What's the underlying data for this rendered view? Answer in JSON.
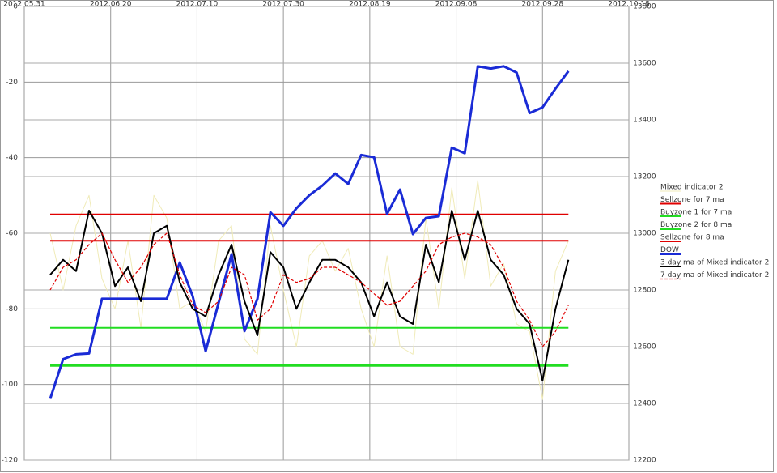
{
  "chart_data": {
    "type": "line",
    "x": [
      "2012-06-06",
      "2012-06-09",
      "2012-06-12",
      "2012-06-15",
      "2012-06-18",
      "2012-06-21",
      "2012-06-24",
      "2012-06-27",
      "2012-06-30",
      "2012-07-03",
      "2012-07-06",
      "2012-07-09",
      "2012-07-12",
      "2012-07-15",
      "2012-07-18",
      "2012-07-21",
      "2012-07-24",
      "2012-07-27",
      "2012-07-30",
      "2012-08-02",
      "2012-08-05",
      "2012-08-08",
      "2012-08-11",
      "2012-08-14",
      "2012-08-17",
      "2012-08-20",
      "2012-08-23",
      "2012-08-26",
      "2012-08-29",
      "2012-09-01",
      "2012-09-04",
      "2012-09-07",
      "2012-09-10",
      "2012-09-13",
      "2012-09-16",
      "2012-09-19",
      "2012-09-22",
      "2012-09-25",
      "2012-09-28",
      "2012-10-01",
      "2012-10-04"
    ],
    "xlim": [
      "2012-05-31",
      "2012-10-18"
    ],
    "xticks": [
      {
        "value": "2012-05-31",
        "label": "2012.05.31"
      },
      {
        "value": "2012-06-20",
        "label": "2012.06.20"
      },
      {
        "value": "2012-07-10",
        "label": "2012.07.10"
      },
      {
        "value": "2012-07-30",
        "label": "2012.07.30"
      },
      {
        "value": "2012-08-19",
        "label": "2012.08.19"
      },
      {
        "value": "2012-09-08",
        "label": "2012.09.08"
      },
      {
        "value": "2012-09-28",
        "label": "2012.09.28"
      },
      {
        "value": "2012-10-18",
        "label": "2012.10.18"
      }
    ],
    "ylim": [
      -120,
      0
    ],
    "yticks": [
      0,
      -20,
      -40,
      -60,
      -80,
      -100,
      -120
    ],
    "y2lim": [
      12200,
      13800
    ],
    "y2ticks": [
      13800,
      13600,
      13400,
      13200,
      13000,
      12800,
      12600,
      12400,
      12200
    ],
    "grid": true,
    "legend": "right",
    "series": [
      {
        "name": "Mixed indicator 2",
        "color": "#f0ebb8",
        "style": "thin",
        "values": [
          -60,
          -75,
          -58,
          -50,
          -72,
          -80,
          -62,
          -85,
          -50,
          -56,
          -80,
          -78,
          -86,
          -62,
          -58,
          -88,
          -92,
          -58,
          -75,
          -90,
          -66,
          -62,
          -70,
          -64,
          -80,
          -90,
          -66,
          -90,
          -92,
          -56,
          -80,
          -48,
          -72,
          -46,
          -74,
          -68,
          -84,
          -86,
          -104,
          -70,
          -62
        ]
      },
      {
        "name": "Sellzone for 7 ma",
        "color": "#e00000",
        "style": "solid",
        "values": [
          -55,
          -55,
          -55,
          -55,
          -55,
          -55,
          -55,
          -55,
          -55,
          -55,
          -55,
          -55,
          -55,
          -55,
          -55,
          -55,
          -55,
          -55,
          -55,
          -55,
          -55,
          -55,
          -55,
          -55,
          -55,
          -55,
          -55,
          -55,
          -55,
          -55,
          -55,
          -55,
          -55,
          -55,
          -55,
          -55,
          -55,
          -55,
          -55,
          -55,
          -55
        ]
      },
      {
        "name": "Buyzone 1 for 7 ma",
        "color": "#22dd22",
        "style": "solid",
        "values": [
          -85,
          -85,
          -85,
          -85,
          -85,
          -85,
          -85,
          -85,
          -85,
          -85,
          -85,
          -85,
          -85,
          -85,
          -85,
          -85,
          -85,
          -85,
          -85,
          -85,
          -85,
          -85,
          -85,
          -85,
          -85,
          -85,
          -85,
          -85,
          -85,
          -85,
          -85,
          -85,
          -85,
          -85,
          -85,
          -85,
          -85,
          -85,
          -85,
          -85,
          -85
        ]
      },
      {
        "name": "Buyzone 2 for 8 ma",
        "color": "#22dd22",
        "style": "thick",
        "values": [
          -95,
          -95,
          -95,
          -95,
          -95,
          -95,
          -95,
          -95,
          -95,
          -95,
          -95,
          -95,
          -95,
          -95,
          -95,
          -95,
          -95,
          -95,
          -95,
          -95,
          -95,
          -95,
          -95,
          -95,
          -95,
          -95,
          -95,
          -95,
          -95,
          -95,
          -95,
          -95,
          -95,
          -95,
          -95,
          -95,
          -95,
          -95,
          -95,
          -95,
          -95
        ]
      },
      {
        "name": "Sellzone for 8 ma",
        "color": "#e00000",
        "style": "solid",
        "values": [
          -62,
          -62,
          -62,
          -62,
          -62,
          -62,
          -62,
          -62,
          -62,
          -62,
          -62,
          -62,
          -62,
          -62,
          -62,
          -62,
          -62,
          -62,
          -62,
          -62,
          -62,
          -62,
          -62,
          -62,
          -62,
          -62,
          -62,
          -62,
          -62,
          -62,
          -62,
          -62,
          -62,
          -62,
          -62,
          -62,
          -62,
          -62,
          -62,
          -62,
          -62
        ]
      },
      {
        "name": "DOW",
        "color": "#1a2bd6",
        "style": "thick",
        "axis": "y2",
        "values": [
          12416,
          12556,
          12573,
          12576,
          12769,
          12769,
          12769,
          12769,
          12769,
          12769,
          12897,
          12778,
          12584,
          12755,
          12926,
          12655,
          12769,
          13074,
          13026,
          13088,
          13134,
          13168,
          13211,
          13174,
          13276,
          13268,
          13068,
          13154,
          12997,
          13054,
          13060,
          13302,
          13282,
          13589,
          13581,
          13589,
          13567,
          13424,
          13444,
          13510,
          13572
        ]
      },
      {
        "name": "3 day ma of Mixed indicator 2",
        "color": "#000000",
        "style": "solid",
        "values": [
          -71,
          -67,
          -70,
          -54,
          -60,
          -74,
          -69,
          -78,
          -60,
          -58,
          -73,
          -80,
          -82,
          -71,
          -63,
          -78,
          -87,
          -65,
          -69,
          -80,
          -73,
          -67,
          -67,
          -69,
          -73,
          -82,
          -73,
          -82,
          -84,
          -63,
          -73,
          -54,
          -67,
          -54,
          -67,
          -71,
          -80,
          -84,
          -99,
          -80,
          -67
        ]
      },
      {
        "name": "7 day ma of Mixed indicator 2",
        "color": "#e00000",
        "style": "dashed",
        "values": [
          -75,
          -69,
          -67,
          -63,
          -60,
          -67,
          -73,
          -69,
          -63,
          -60,
          -71,
          -79,
          -81,
          -78,
          -69,
          -71,
          -83,
          -80,
          -71,
          -73,
          -72,
          -69,
          -69,
          -71,
          -73,
          -76,
          -79,
          -78,
          -74,
          -70,
          -63,
          -61,
          -60,
          -61,
          -63,
          -69,
          -78,
          -83,
          -90,
          -86,
          -79
        ]
      }
    ]
  }
}
